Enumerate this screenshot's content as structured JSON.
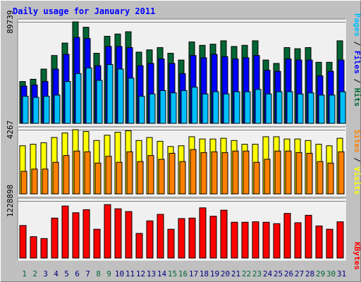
{
  "chart_data": {
    "type": "bar",
    "title": "Daily usage for January 2011",
    "categories": [
      "1",
      "2",
      "3",
      "4",
      "5",
      "6",
      "7",
      "8",
      "9",
      "10",
      "11",
      "12",
      "13",
      "14",
      "15",
      "16",
      "17",
      "18",
      "19",
      "20",
      "21",
      "22",
      "23",
      "24",
      "25",
      "26",
      "27",
      "28",
      "29",
      "30",
      "31"
    ],
    "weekend_days": [
      1,
      2,
      8,
      9,
      15,
      16,
      22,
      23,
      29,
      30
    ],
    "panels": [
      {
        "name": "hits-files-pages",
        "y_max_label": "89739",
        "ylim": [
          0,
          89739
        ],
        "series": [
          {
            "name": "Hits",
            "color": "#006633",
            "values": [
              37000,
              39000,
              48000,
              60000,
              71000,
              89739,
              85000,
              62000,
              77000,
              79000,
              81000,
              63000,
              65000,
              67000,
              62000,
              56000,
              72000,
              69000,
              70000,
              73000,
              68000,
              69000,
              73000,
              56000,
              53000,
              67000,
              66000,
              67000,
              54000,
              54000,
              73000
            ]
          },
          {
            "name": "Files",
            "color": "#0000ff",
            "values": [
              33000,
              34000,
              37000,
              48000,
              61000,
              76000,
              75000,
              51000,
              68000,
              68000,
              67000,
              51000,
              53000,
              57000,
              53000,
              44000,
              60000,
              58000,
              61000,
              59000,
              57000,
              58000,
              60000,
              47000,
              46000,
              57000,
              56000,
              56000,
              42000,
              46000,
              56000
            ]
          },
          {
            "name": "Pages",
            "color": "#00bfff",
            "values": [
              24000,
              23000,
              24000,
              25000,
              37000,
              44000,
              49000,
              38000,
              52000,
              48000,
              40000,
              24000,
              26000,
              29000,
              27000,
              29000,
              32000,
              26000,
              28000,
              26000,
              28000,
              28000,
              30000,
              26000,
              28000,
              28000,
              26000,
              27000,
              25000,
              25000,
              28000
            ]
          }
        ]
      },
      {
        "name": "visits-sites",
        "y_max_label": "4267",
        "ylim": [
          0,
          4267
        ],
        "series": [
          {
            "name": "Visits",
            "color": "#ffff00",
            "values": [
              3200,
              3300,
              3400,
              3750,
              4050,
              4267,
              4150,
              3550,
              3900,
              4100,
              4200,
              3550,
              3750,
              3500,
              3150,
              3200,
              3800,
              3650,
              3650,
              3700,
              3550,
              3300,
              3300,
              3800,
              3800,
              3650,
              3650,
              3550,
              3300,
              3200,
              3700
            ]
          },
          {
            "name": "Sites",
            "color": "#ff8000",
            "values": [
              1500,
              1650,
              1650,
              2100,
              2550,
              2850,
              2800,
              2050,
              2500,
              2100,
              2800,
              2150,
              2550,
              2300,
              2700,
              2150,
              2950,
              2750,
              2800,
              2750,
              2850,
              2850,
              2100,
              2300,
              2850,
              2850,
              2750,
              2700,
              2150,
              2050,
              2800
            ]
          }
        ]
      },
      {
        "name": "kbytes",
        "y_max_label": "1228898",
        "ylim": [
          0,
          1228898
        ],
        "series": [
          {
            "name": "KBytes",
            "color": "#ff0000",
            "values": [
              700000,
              460000,
              420000,
              860000,
              1120000,
              975000,
              1040000,
              620000,
              1150000,
              1060000,
              1000000,
              530000,
              800000,
              940000,
              620000,
              850000,
              860000,
              1080000,
              900000,
              1030000,
              770000,
              770000,
              780000,
              770000,
              740000,
              960000,
              760000,
              920000,
              690000,
              620000,
              780000
            ]
          }
        ]
      }
    ],
    "right_labels": [
      {
        "text": "Hits",
        "color": "#006633"
      },
      {
        "text": "Files",
        "color": "#0000ff"
      },
      {
        "text": "Pages",
        "color": "#00bfff"
      },
      {
        "text": "Visits",
        "color": "#ffff00"
      },
      {
        "text": "Sites",
        "color": "#ff8000"
      },
      {
        "text": "KBytes",
        "color": "#ff0000"
      }
    ],
    "separator": " / ",
    "colors": {
      "title": "#0000ff",
      "weekday_label": "#000080",
      "weekend_label": "#006633",
      "panel_bg": "#f0f0f0",
      "frame_bg": "#c0c0c0"
    }
  }
}
